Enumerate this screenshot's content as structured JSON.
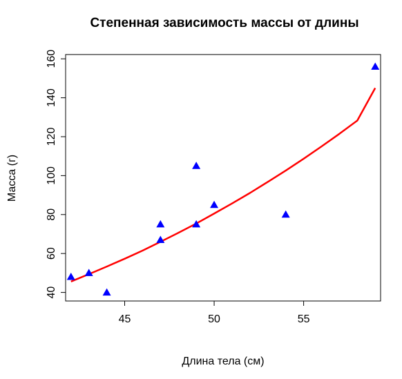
{
  "chart_data": {
    "type": "scatter",
    "title": "Степенная зависимость массы от длины",
    "xlabel": "Длина тела (см)",
    "ylabel": "Масса (г)",
    "xlim": [
      41.7,
      59.3
    ],
    "ylim": [
      35.6,
      162.2
    ],
    "xticks": [
      45,
      50,
      55
    ],
    "yticks": [
      40,
      60,
      80,
      100,
      120,
      140,
      160
    ],
    "grid": false,
    "points": [
      {
        "x": 42,
        "y": 48
      },
      {
        "x": 43,
        "y": 50
      },
      {
        "x": 44,
        "y": 40
      },
      {
        "x": 47,
        "y": 75
      },
      {
        "x": 47,
        "y": 67
      },
      {
        "x": 49,
        "y": 105
      },
      {
        "x": 49,
        "y": 75
      },
      {
        "x": 50,
        "y": 85
      },
      {
        "x": 54,
        "y": 80
      },
      {
        "x": 59,
        "y": 156
      }
    ],
    "fit_line": {
      "x": [
        42,
        43,
        44,
        45,
        46,
        47,
        48,
        49,
        50,
        51,
        52,
        53,
        54,
        55,
        56,
        57,
        58,
        59
      ],
      "y": [
        45.6,
        49.4,
        53.3,
        57.3,
        61.5,
        66.0,
        70.6,
        75.4,
        80.5,
        85.7,
        91.1,
        96.8,
        102.6,
        108.7,
        115.0,
        121.5,
        128.3,
        145.0
      ]
    },
    "point_color": "#0000ff",
    "line_color": "#ff0000"
  }
}
